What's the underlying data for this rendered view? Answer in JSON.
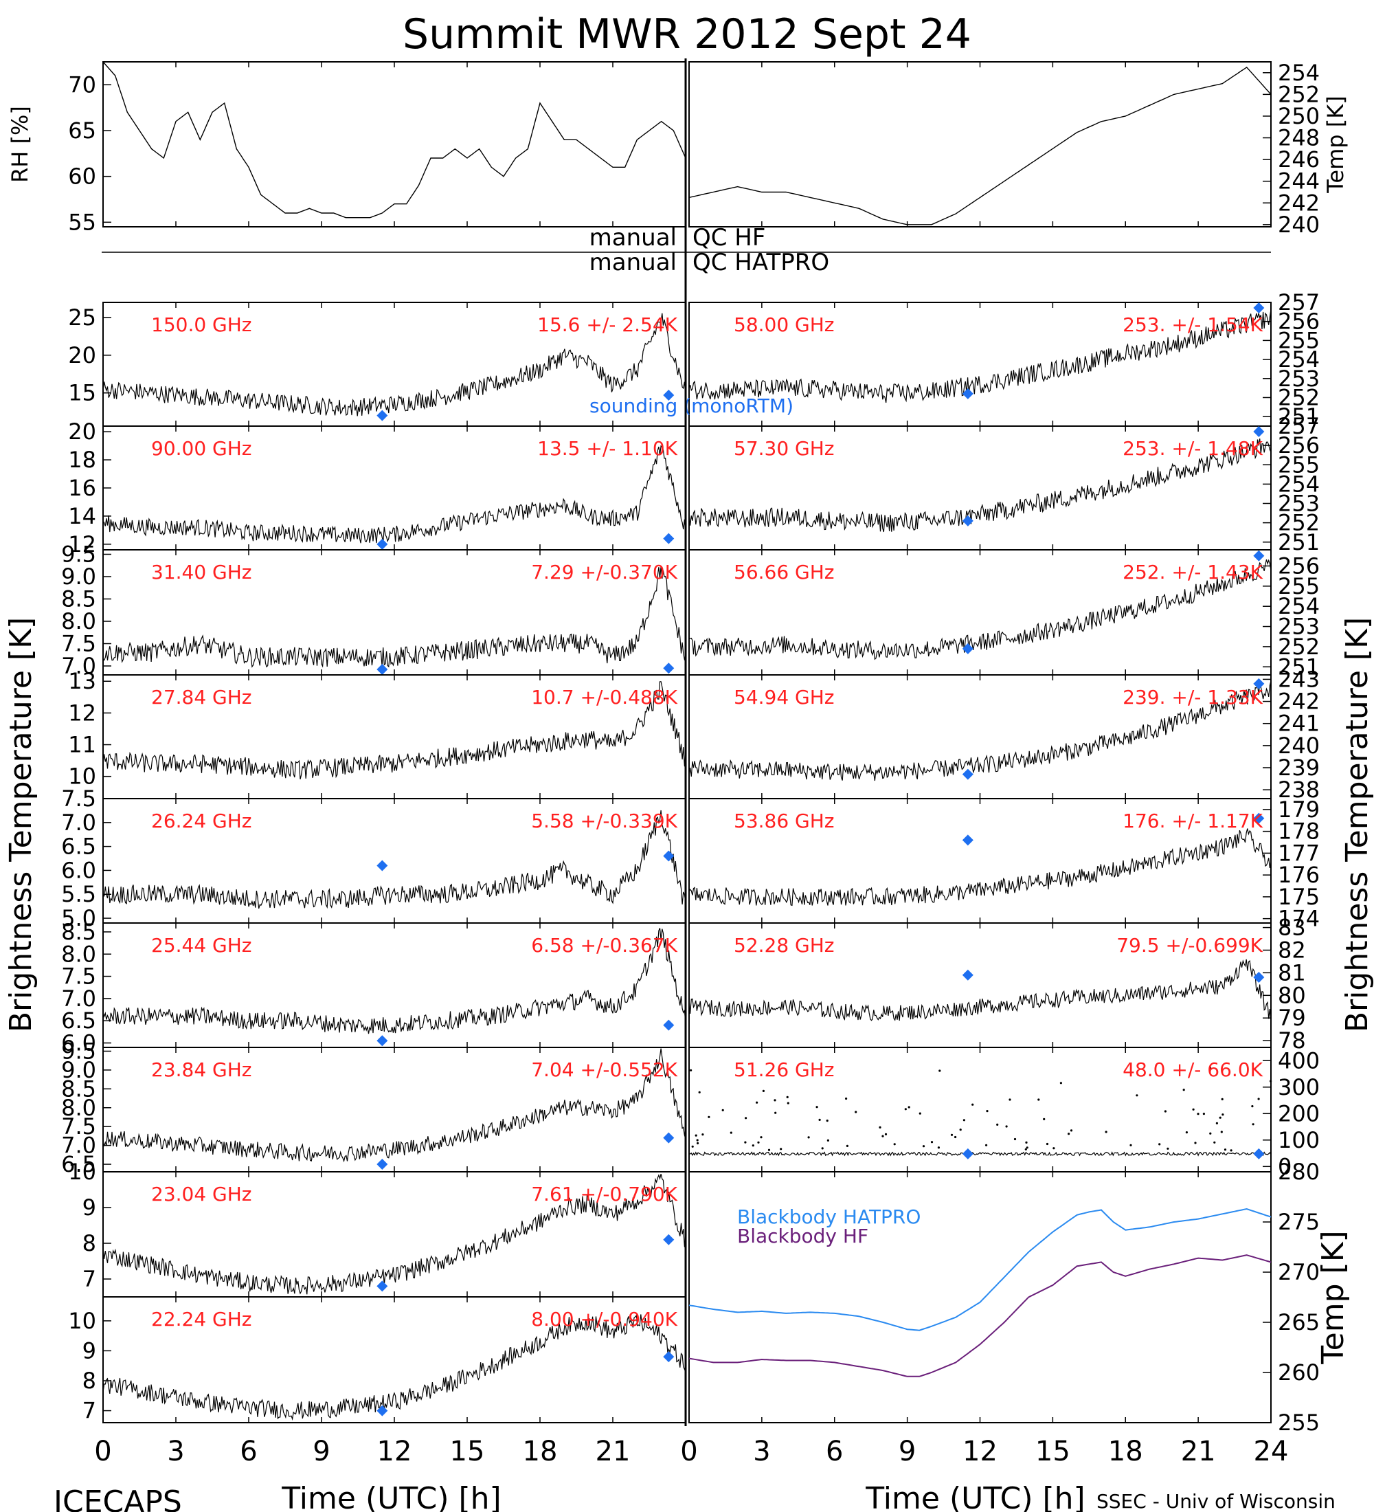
{
  "title": "Summit MWR 2012 Sept 24",
  "footer": {
    "left": "ICECAPS",
    "right": "SSEC - Univ of Wisconsin"
  },
  "xlabel": "Time (UTC) [h]",
  "xticks": [
    "0",
    "3",
    "6",
    "9",
    "12",
    "15",
    "18",
    "21",
    "24"
  ],
  "left_ylabel": "Brightness Temperature [K]",
  "right_ylabel": "Brightness Temperature [K]",
  "qc": {
    "left1": "manual",
    "right1": "QC HF",
    "left2": "manual",
    "right2": "QC HATPRO"
  },
  "colors": {
    "data": "#000000",
    "channel_text": "#ff2020",
    "sounding": "#1e6ff0",
    "bb_hatpro": "#2a8af0",
    "bb_hf": "#6a1f7a"
  },
  "sounding_label": "sounding (monoRTM)",
  "chart_data": [
    {
      "type": "line",
      "panel": "rh",
      "ylabel": "RH [%]",
      "ylim": [
        54.5,
        72.5
      ],
      "yticks": [
        55,
        60,
        65,
        70
      ],
      "x": [
        0,
        0.5,
        1,
        1.5,
        2,
        2.5,
        3,
        3.5,
        4,
        4.5,
        5,
        5.5,
        6,
        6.5,
        7,
        7.5,
        8,
        8.5,
        9,
        9.5,
        10,
        10.5,
        11,
        11.5,
        12,
        12.5,
        13,
        13.5,
        14,
        14.5,
        15,
        15.5,
        16,
        16.5,
        17,
        17.5,
        18,
        18.5,
        19,
        19.5,
        20,
        20.5,
        21,
        21.5,
        22,
        22.5,
        23,
        23.5,
        24
      ],
      "values": [
        72.5,
        71,
        67,
        65,
        63,
        62,
        66,
        67,
        64,
        67,
        68,
        63,
        61,
        58,
        57,
        56,
        56,
        56.5,
        56,
        56,
        55.5,
        55.5,
        55.5,
        56,
        57,
        57,
        59,
        62,
        62,
        63,
        62,
        63,
        61,
        60,
        62,
        63,
        68,
        66,
        64,
        64,
        63,
        62,
        61,
        61,
        64,
        65,
        66,
        65,
        62
      ]
    },
    {
      "type": "line",
      "panel": "temp",
      "ylabel": "Temp [K]",
      "ylim": [
        239.8,
        255
      ],
      "yticks": [
        240,
        242,
        244,
        246,
        248,
        250,
        252,
        254
      ],
      "x": [
        0,
        1,
        2,
        3,
        4,
        5,
        6,
        7,
        8,
        9,
        10,
        11,
        12,
        13,
        14,
        15,
        16,
        17,
        18,
        19,
        20,
        21,
        22,
        23,
        24
      ],
      "values": [
        242.5,
        243,
        243.5,
        243,
        243,
        242.5,
        242,
        241.5,
        240.5,
        240,
        240,
        241,
        242.5,
        244,
        245.5,
        247,
        248.5,
        249.5,
        250,
        251,
        252,
        252.5,
        253,
        254.5,
        252
      ]
    },
    {
      "type": "scatter",
      "side": "left",
      "channel": "150.0 GHz",
      "stats": "15.6 +/-  2.54K",
      "ylim": [
        10.6,
        27
      ],
      "yticks": [
        15,
        20,
        25
      ],
      "noise": 1.2,
      "x": [
        0,
        2,
        4,
        6,
        8,
        10,
        12,
        14,
        16,
        18,
        19,
        20,
        21,
        22,
        23,
        24
      ],
      "values": [
        15.5,
        15,
        14.5,
        14,
        13.5,
        13,
        13.5,
        14.5,
        16,
        18,
        20,
        19,
        16,
        18,
        25,
        15
      ],
      "sounding": [
        {
          "x": 11.5,
          "y": 12
        },
        {
          "x": 23.3,
          "y": 14.7
        }
      ]
    },
    {
      "type": "scatter",
      "side": "left",
      "channel": "90.00 GHz",
      "stats": "13.5 +/-  1.10K",
      "ylim": [
        11.6,
        20.4
      ],
      "yticks": [
        12,
        14,
        16,
        18,
        20
      ],
      "noise": 0.6,
      "x": [
        0,
        2,
        4,
        6,
        8,
        10,
        12,
        14,
        16,
        18,
        19,
        20,
        21,
        22,
        23,
        24
      ],
      "values": [
        13.5,
        13.2,
        13.2,
        12.8,
        12.8,
        12.6,
        12.7,
        13.3,
        14,
        14.5,
        14.8,
        14,
        13.8,
        14.2,
        19,
        13
      ],
      "sounding": [
        {
          "x": 11.5,
          "y": 12
        },
        {
          "x": 23.3,
          "y": 12.4
        }
      ]
    },
    {
      "type": "scatter",
      "side": "left",
      "channel": "31.40 GHz",
      "stats": "7.29 +/-0.370K",
      "ylim": [
        6.8,
        9.6
      ],
      "yticks": [
        7.0,
        7.5,
        8.0,
        8.5,
        9.0,
        9.5
      ],
      "noise": 0.22,
      "x": [
        0,
        2,
        4,
        6,
        8,
        10,
        12,
        14,
        16,
        18,
        20,
        21,
        22,
        23,
        24
      ],
      "values": [
        7.3,
        7.3,
        7.5,
        7.2,
        7.2,
        7.2,
        7.2,
        7.3,
        7.4,
        7.5,
        7.5,
        7.2,
        7.5,
        9.2,
        7.1
      ],
      "sounding": [
        {
          "x": 11.5,
          "y": 6.9
        },
        {
          "x": 23.3,
          "y": 6.95
        }
      ]
    },
    {
      "type": "scatter",
      "side": "left",
      "channel": "27.84 GHz",
      "stats": "10.7 +/-0.488K",
      "ylim": [
        9.3,
        13.2
      ],
      "yticks": [
        10,
        11,
        12,
        13
      ],
      "noise": 0.3,
      "x": [
        0,
        2,
        4,
        6,
        8,
        10,
        12,
        14,
        16,
        18,
        20,
        21,
        22,
        23,
        24
      ],
      "values": [
        10.5,
        10.4,
        10.4,
        10.3,
        10.2,
        10.3,
        10.4,
        10.6,
        10.8,
        11,
        11.2,
        11,
        11.5,
        12.8,
        10.5
      ],
      "sounding": []
    },
    {
      "type": "scatter",
      "side": "left",
      "channel": "26.24 GHz",
      "stats": "5.58 +/-0.339K",
      "ylim": [
        4.9,
        7.5
      ],
      "yticks": [
        5.0,
        5.5,
        6.0,
        6.5,
        7.0,
        7.5
      ],
      "noise": 0.2,
      "x": [
        0,
        2,
        4,
        6,
        8,
        10,
        12,
        14,
        16,
        18,
        19,
        20,
        21,
        22,
        23,
        24
      ],
      "values": [
        5.5,
        5.5,
        5.5,
        5.4,
        5.4,
        5.4,
        5.5,
        5.5,
        5.6,
        5.8,
        6,
        5.7,
        5.5,
        6,
        7.2,
        5.2
      ],
      "sounding": [
        {
          "x": 11.5,
          "y": 6.1
        },
        {
          "x": 23.3,
          "y": 6.3
        }
      ]
    },
    {
      "type": "scatter",
      "side": "left",
      "channel": "25.44 GHz",
      "stats": "6.58 +/-0.367K",
      "ylim": [
        5.9,
        8.7
      ],
      "yticks": [
        6.0,
        6.5,
        7.0,
        7.5,
        8.0,
        8.5
      ],
      "noise": 0.2,
      "x": [
        0,
        2,
        4,
        6,
        8,
        10,
        12,
        14,
        16,
        18,
        20,
        21,
        22,
        23,
        24
      ],
      "values": [
        6.6,
        6.6,
        6.6,
        6.5,
        6.5,
        6.4,
        6.4,
        6.5,
        6.6,
        6.8,
        7,
        6.8,
        7.2,
        8.5,
        6.5
      ],
      "sounding": [
        {
          "x": 11.5,
          "y": 6.05
        },
        {
          "x": 23.3,
          "y": 6.4
        }
      ]
    },
    {
      "type": "scatter",
      "side": "left",
      "channel": "23.84 GHz",
      "stats": "7.04 +/-0.552K",
      "ylim": [
        6.3,
        9.6
      ],
      "yticks": [
        6.5,
        7.0,
        7.5,
        8.0,
        8.5,
        9.0,
        9.5
      ],
      "noise": 0.22,
      "x": [
        0,
        2,
        4,
        6,
        8,
        10,
        12,
        14,
        16,
        18,
        19,
        20,
        21,
        22,
        23,
        24
      ],
      "values": [
        7.2,
        7.1,
        7,
        6.9,
        6.8,
        6.8,
        6.9,
        7.1,
        7.4,
        7.8,
        8,
        8,
        7.9,
        8.2,
        9.4,
        7.2
      ],
      "sounding": [
        {
          "x": 11.5,
          "y": 6.5
        },
        {
          "x": 23.3,
          "y": 7.2
        }
      ]
    },
    {
      "type": "scatter",
      "side": "left",
      "channel": "23.04 GHz",
      "stats": "7.61 +/-0.790K",
      "ylim": [
        6.5,
        10
      ],
      "yticks": [
        7,
        8,
        9,
        10
      ],
      "noise": 0.25,
      "x": [
        0,
        2,
        4,
        6,
        8,
        10,
        12,
        14,
        16,
        18,
        19,
        20,
        21,
        22,
        23,
        24
      ],
      "values": [
        7.7,
        7.4,
        7.1,
        6.9,
        6.8,
        6.9,
        7.1,
        7.5,
        8,
        8.6,
        9,
        9.1,
        8.8,
        9.2,
        9.8,
        8
      ],
      "sounding": [
        {
          "x": 11.5,
          "y": 6.8
        },
        {
          "x": 23.3,
          "y": 8.1
        }
      ]
    },
    {
      "type": "scatter",
      "side": "left",
      "channel": "22.24 GHz",
      "stats": "8.00 +/-0.940K",
      "ylim": [
        6.6,
        10.8
      ],
      "yticks": [
        7,
        8,
        9,
        10
      ],
      "noise": 0.3,
      "x": [
        0,
        2,
        4,
        6,
        8,
        10,
        12,
        14,
        16,
        18,
        19,
        20,
        21,
        22,
        23,
        24
      ],
      "values": [
        7.9,
        7.6,
        7.3,
        7.1,
        7,
        7.1,
        7.3,
        7.8,
        8.5,
        9.3,
        9.8,
        10,
        9.6,
        10,
        9.5,
        8.5
      ],
      "sounding": [
        {
          "x": 11.5,
          "y": 7
        },
        {
          "x": 23.3,
          "y": 8.8
        }
      ]
    },
    {
      "type": "scatter",
      "side": "right",
      "channel": "58.00 GHz",
      "stats": "253. +/- 1.54K",
      "ylim": [
        250.5,
        257
      ],
      "yticks": [
        251,
        252,
        253,
        254,
        255,
        256,
        257
      ],
      "noise": 0.5,
      "x": [
        0,
        2,
        4,
        6,
        8,
        10,
        12,
        14,
        16,
        18,
        20,
        22,
        24
      ],
      "values": [
        252.4,
        252.4,
        252.5,
        252.4,
        252.2,
        252.3,
        252.7,
        253.2,
        253.7,
        254.3,
        254.8,
        255.5,
        256.2
      ],
      "sounding": [
        {
          "x": 11.5,
          "y": 252.2
        },
        {
          "x": 23.5,
          "y": 257
        }
      ]
    },
    {
      "type": "scatter",
      "side": "right",
      "channel": "57.30 GHz",
      "stats": "253. +/- 1.48K",
      "ylim": [
        250.6,
        257
      ],
      "yticks": [
        251,
        252,
        253,
        254,
        255,
        256,
        257
      ],
      "noise": 0.5,
      "x": [
        0,
        2,
        4,
        6,
        8,
        10,
        12,
        14,
        16,
        18,
        20,
        22,
        24
      ],
      "values": [
        252.3,
        252.2,
        252.3,
        252.1,
        252,
        252.1,
        252.4,
        252.9,
        253.4,
        254,
        254.6,
        255.3,
        256.1
      ],
      "sounding": [
        {
          "x": 11.5,
          "y": 252.1
        },
        {
          "x": 23.5,
          "y": 257
        }
      ]
    },
    {
      "type": "scatter",
      "side": "right",
      "channel": "56.66 GHz",
      "stats": "252. +/- 1.43K",
      "ylim": [
        250.6,
        256.8
      ],
      "yticks": [
        251,
        252,
        253,
        254,
        255,
        256,
        257
      ],
      "noise": 0.45,
      "x": [
        0,
        2,
        4,
        6,
        8,
        10,
        12,
        14,
        16,
        18,
        20,
        22,
        24
      ],
      "values": [
        252,
        252,
        252.1,
        251.9,
        251.8,
        251.9,
        252.2,
        252.6,
        253.1,
        253.7,
        254.3,
        255.1,
        256
      ],
      "sounding": [
        {
          "x": 11.5,
          "y": 251.9
        },
        {
          "x": 23.5,
          "y": 256.5
        }
      ]
    },
    {
      "type": "scatter",
      "side": "right",
      "channel": "54.94 GHz",
      "stats": "239. +/- 1.33K",
      "ylim": [
        237.6,
        243.2
      ],
      "yticks": [
        238,
        239,
        240,
        241,
        242,
        243
      ],
      "noise": 0.4,
      "x": [
        0,
        2,
        4,
        6,
        8,
        10,
        12,
        14,
        16,
        18,
        20,
        22,
        24
      ],
      "values": [
        239,
        238.9,
        238.9,
        238.8,
        238.8,
        238.9,
        239.1,
        239.4,
        239.8,
        240.3,
        241,
        241.8,
        242.6
      ],
      "sounding": [
        {
          "x": 11.5,
          "y": 238.7
        },
        {
          "x": 23.5,
          "y": 242.8
        }
      ]
    },
    {
      "type": "scatter",
      "side": "right",
      "channel": "53.86 GHz",
      "stats": "176. +/- 1.17K",
      "ylim": [
        173.8,
        179.5
      ],
      "yticks": [
        174,
        175,
        176,
        177,
        178,
        179
      ],
      "noise": 0.4,
      "x": [
        0,
        2,
        4,
        6,
        8,
        10,
        12,
        14,
        16,
        18,
        20,
        22,
        23,
        24
      ],
      "values": [
        175.1,
        175,
        175,
        175,
        175,
        175.1,
        175.3,
        175.6,
        175.9,
        176.3,
        176.8,
        177.3,
        177.8,
        176.5
      ],
      "sounding": [
        {
          "x": 11.5,
          "y": 177.6
        },
        {
          "x": 23.5,
          "y": 178.6
        }
      ]
    },
    {
      "type": "scatter",
      "side": "right",
      "channel": "52.28 GHz",
      "stats": "79.5 +/-0.699K",
      "ylim": [
        77.7,
        83.2
      ],
      "yticks": [
        78,
        79,
        80,
        81,
        82,
        83
      ],
      "noise": 0.35,
      "x": [
        0,
        2,
        4,
        6,
        8,
        10,
        12,
        14,
        16,
        18,
        20,
        22,
        23,
        24
      ],
      "values": [
        79.5,
        79.4,
        79.5,
        79.3,
        79.2,
        79.3,
        79.5,
        79.7,
        79.9,
        80,
        80.2,
        80.4,
        81.5,
        79
      ],
      "sounding": [
        {
          "x": 11.5,
          "y": 80.9
        },
        {
          "x": 23.5,
          "y": 80.8
        }
      ]
    },
    {
      "type": "scatter",
      "side": "right",
      "channel": "51.26 GHz",
      "stats": "48.0 +/- 66.0K",
      "ylim": [
        -20,
        450
      ],
      "yticks": [
        0,
        100,
        200,
        300,
        400
      ],
      "noise": 6,
      "x": [
        0,
        24
      ],
      "values": [
        48,
        48
      ],
      "sounding": [
        {
          "x": 11.5,
          "y": 48
        },
        {
          "x": 23.5,
          "y": 48
        }
      ]
    },
    {
      "type": "line",
      "panel": "blackbody",
      "ylabel": "Temp [K]",
      "ylim": [
        255,
        280
      ],
      "yticks": [
        255,
        260,
        265,
        270,
        275,
        280
      ],
      "series": [
        {
          "name": "Blackbody HATPRO",
          "x": [
            0,
            1,
            2,
            3,
            4,
            5,
            6,
            7,
            8,
            9,
            9.5,
            10,
            11,
            12,
            13,
            14,
            15,
            16,
            16.5,
            17,
            17.5,
            18,
            19,
            20,
            21,
            22,
            23,
            24
          ],
          "values": [
            266.7,
            266.3,
            266,
            266.1,
            265.9,
            266,
            265.9,
            265.6,
            265,
            264.3,
            264.2,
            264.6,
            265.5,
            267,
            269.5,
            272,
            274,
            275.7,
            276,
            276.2,
            275,
            274.2,
            274.5,
            275,
            275.3,
            275.8,
            276.3,
            275.5
          ]
        },
        {
          "name": "Blackbody HF",
          "x": [
            0,
            1,
            2,
            3,
            4,
            5,
            6,
            7,
            8,
            9,
            9.5,
            10,
            11,
            12,
            13,
            14,
            15,
            16,
            16.5,
            17,
            17.5,
            18,
            19,
            20,
            21,
            22,
            23,
            24
          ],
          "values": [
            261.4,
            261,
            261,
            261.3,
            261.2,
            261.2,
            261,
            260.6,
            260.2,
            259.6,
            259.6,
            260,
            261,
            262.8,
            265,
            267.5,
            268.7,
            270.6,
            270.8,
            271,
            270,
            269.6,
            270.3,
            270.8,
            271.4,
            271.2,
            271.7,
            271
          ]
        }
      ]
    }
  ]
}
